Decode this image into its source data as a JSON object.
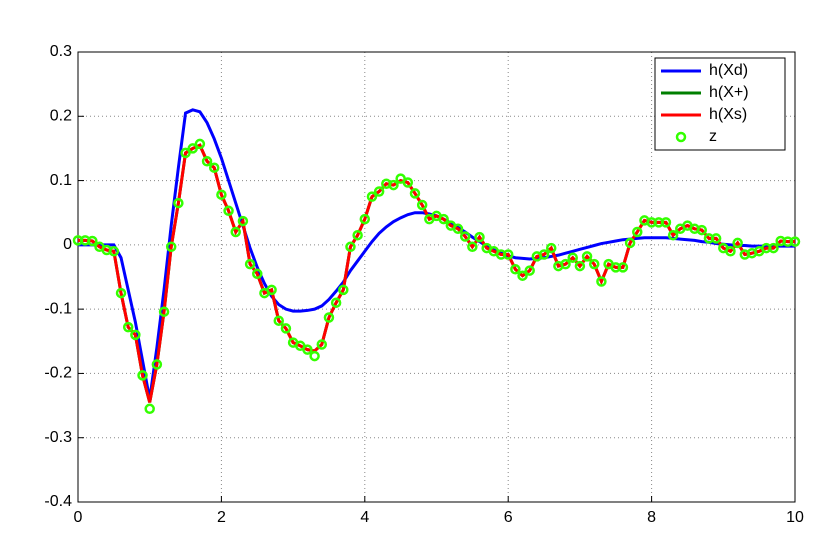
{
  "chart_data": {
    "type": "line",
    "x": [
      0,
      0.1,
      0.2,
      0.3,
      0.4,
      0.5,
      0.6,
      0.7,
      0.8,
      0.9,
      1,
      1.1,
      1.2,
      1.3,
      1.4,
      1.5,
      1.6,
      1.7,
      1.8,
      1.9,
      2,
      2.1,
      2.2,
      2.3,
      2.4,
      2.5,
      2.6,
      2.7,
      2.8,
      2.9,
      3,
      3.1,
      3.2,
      3.3,
      3.4,
      3.5,
      3.6,
      3.7,
      3.8,
      3.9,
      4,
      4.1,
      4.2,
      4.3,
      4.4,
      4.5,
      4.6,
      4.7,
      4.8,
      4.9,
      5,
      5.1,
      5.2,
      5.3,
      5.4,
      5.5,
      5.6,
      5.7,
      5.8,
      5.9,
      6,
      6.1,
      6.2,
      6.3,
      6.4,
      6.5,
      6.6,
      6.7,
      6.8,
      6.9,
      7,
      7.1,
      7.2,
      7.3,
      7.4,
      7.5,
      7.6,
      7.7,
      7.8,
      7.9,
      8,
      8.1,
      8.2,
      8.3,
      8.4,
      8.5,
      8.6,
      8.7,
      8.8,
      8.9,
      9,
      9.1,
      9.2,
      9.3,
      9.4,
      9.5,
      9.6,
      9.7,
      9.8,
      9.9,
      10
    ],
    "series": [
      {
        "name": "h(Xd)",
        "color": "#0000ff",
        "style": "line",
        "values": [
          0,
          0,
          0,
          0,
          0,
          0,
          -0.02,
          -0.07,
          -0.12,
          -0.18,
          -0.24,
          -0.16,
          -0.07,
          0.03,
          0.12,
          0.205,
          0.21,
          0.207,
          0.19,
          0.165,
          0.135,
          0.1,
          0.065,
          0.03,
          -0.005,
          -0.035,
          -0.06,
          -0.08,
          -0.093,
          -0.1,
          -0.103,
          -0.103,
          -0.102,
          -0.1,
          -0.095,
          -0.085,
          -0.072,
          -0.058,
          -0.04,
          -0.025,
          -0.01,
          0.005,
          0.018,
          0.028,
          0.036,
          0.042,
          0.047,
          0.05,
          0.05,
          0.048,
          0.045,
          0.04,
          0.034,
          0.027,
          0.02,
          0.012,
          0.005,
          -0.002,
          -0.008,
          -0.013,
          -0.017,
          -0.02,
          -0.021,
          -0.022,
          -0.021,
          -0.02,
          -0.018,
          -0.016,
          -0.013,
          -0.01,
          -0.007,
          -0.004,
          -0.001,
          0.002,
          0.004,
          0.006,
          0.008,
          0.009,
          0.01,
          0.011,
          0.011,
          0.011,
          0.011,
          0.01,
          0.009,
          0.008,
          0.007,
          0.005,
          0.004,
          0.002,
          0.001,
          0,
          -0.001,
          -0.001,
          -0.002,
          -0.002,
          -0.002,
          -0.002,
          -0.002,
          -0.002,
          -0.002
        ]
      },
      {
        "name": "h(X+)",
        "color": "#007f00",
        "style": "line",
        "values": [
          0.007,
          0.007,
          0.006,
          -0.003,
          -0.008,
          -0.01,
          -0.075,
          -0.128,
          -0.14,
          -0.203,
          -0.245,
          -0.186,
          -0.104,
          -0.003,
          0.065,
          0.143,
          0.15,
          0.155,
          0.13,
          0.12,
          0.078,
          0.053,
          0.02,
          0.037,
          -0.03,
          -0.045,
          -0.075,
          -0.07,
          -0.118,
          -0.13,
          -0.152,
          -0.157,
          -0.163,
          -0.165,
          -0.155,
          -0.113,
          -0.09,
          -0.07,
          -0.003,
          0.015,
          0.04,
          0.075,
          0.083,
          0.095,
          0.093,
          0.1,
          0.097,
          0.08,
          0.062,
          0.04,
          0.045,
          0.04,
          0.03,
          0.025,
          0.013,
          -0.003,
          0.012,
          -0.005,
          -0.01,
          -0.015,
          -0.015,
          -0.038,
          -0.048,
          -0.04,
          -0.018,
          -0.015,
          -0.005,
          -0.033,
          -0.03,
          -0.02,
          -0.033,
          -0.018,
          -0.03,
          -0.057,
          -0.03,
          -0.035,
          -0.035,
          0.003,
          0.02,
          0.038,
          0.035,
          0.035,
          0.035,
          0.015,
          0.025,
          0.03,
          0.025,
          0.023,
          0.01,
          0.01,
          -0.005,
          -0.01,
          0.003,
          -0.015,
          -0.013,
          -0.01,
          -0.005,
          -0.005,
          0.006,
          0.005,
          0.005
        ]
      },
      {
        "name": "h(Xs)",
        "color": "#ff0000",
        "style": "line",
        "values": [
          0.007,
          0.007,
          0.006,
          -0.003,
          -0.008,
          -0.01,
          -0.075,
          -0.128,
          -0.14,
          -0.203,
          -0.245,
          -0.186,
          -0.104,
          -0.003,
          0.065,
          0.143,
          0.15,
          0.155,
          0.13,
          0.12,
          0.078,
          0.053,
          0.02,
          0.037,
          -0.03,
          -0.045,
          -0.075,
          -0.07,
          -0.118,
          -0.13,
          -0.152,
          -0.157,
          -0.163,
          -0.165,
          -0.155,
          -0.113,
          -0.09,
          -0.07,
          -0.003,
          0.015,
          0.04,
          0.075,
          0.083,
          0.095,
          0.093,
          0.1,
          0.097,
          0.08,
          0.062,
          0.04,
          0.045,
          0.04,
          0.03,
          0.025,
          0.013,
          -0.003,
          0.012,
          -0.005,
          -0.01,
          -0.015,
          -0.015,
          -0.038,
          -0.048,
          -0.04,
          -0.018,
          -0.015,
          -0.005,
          -0.033,
          -0.03,
          -0.02,
          -0.033,
          -0.018,
          -0.03,
          -0.057,
          -0.03,
          -0.035,
          -0.035,
          0.003,
          0.02,
          0.038,
          0.035,
          0.035,
          0.035,
          0.015,
          0.025,
          0.03,
          0.025,
          0.023,
          0.01,
          0.01,
          -0.005,
          -0.01,
          0.003,
          -0.015,
          -0.013,
          -0.01,
          -0.005,
          -0.005,
          0.006,
          0.005,
          0.005
        ]
      },
      {
        "name": "z",
        "color": "#33ff00",
        "style": "markers",
        "values": [
          0.007,
          0.007,
          0.006,
          -0.003,
          -0.008,
          -0.01,
          -0.075,
          -0.128,
          -0.14,
          -0.203,
          -0.255,
          -0.186,
          -0.104,
          -0.003,
          0.065,
          0.143,
          0.15,
          0.157,
          0.13,
          0.12,
          0.078,
          0.053,
          0.02,
          0.037,
          -0.03,
          -0.045,
          -0.075,
          -0.07,
          -0.118,
          -0.13,
          -0.152,
          -0.157,
          -0.163,
          -0.173,
          -0.155,
          -0.113,
          -0.09,
          -0.07,
          -0.003,
          0.015,
          0.04,
          0.075,
          0.083,
          0.095,
          0.093,
          0.103,
          0.097,
          0.08,
          0.062,
          0.04,
          0.045,
          0.04,
          0.03,
          0.025,
          0.013,
          -0.003,
          0.012,
          -0.005,
          -0.01,
          -0.015,
          -0.015,
          -0.038,
          -0.048,
          -0.04,
          -0.018,
          -0.015,
          -0.005,
          -0.033,
          -0.03,
          -0.02,
          -0.033,
          -0.018,
          -0.03,
          -0.057,
          -0.03,
          -0.035,
          -0.035,
          0.003,
          0.02,
          0.038,
          0.035,
          0.035,
          0.035,
          0.015,
          0.025,
          0.03,
          0.025,
          0.023,
          0.01,
          0.01,
          -0.005,
          -0.01,
          0.003,
          -0.015,
          -0.013,
          -0.01,
          -0.005,
          -0.005,
          0.006,
          0.005,
          0.005
        ]
      }
    ],
    "xlim": [
      0,
      10
    ],
    "xticks": [
      0,
      2,
      4,
      6,
      8,
      10
    ],
    "ylim": [
      -0.4,
      0.3
    ],
    "yticks": [
      -0.4,
      -0.3,
      -0.2,
      -0.1,
      0,
      0.1,
      0.2,
      0.3
    ],
    "grid": true,
    "legend": "northeast"
  }
}
